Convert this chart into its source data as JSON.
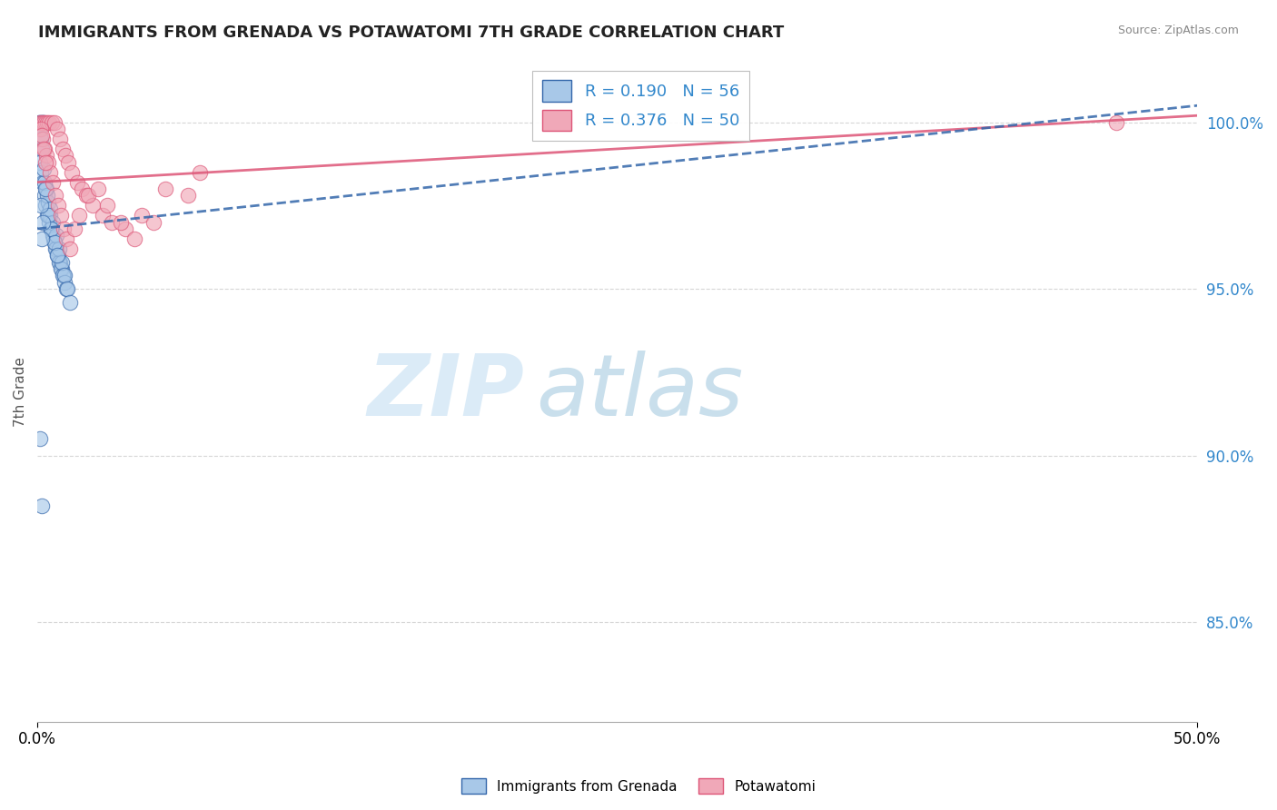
{
  "title": "IMMIGRANTS FROM GRENADA VS POTAWATOMI 7TH GRADE CORRELATION CHART",
  "source": "Source: ZipAtlas.com",
  "ylabel": "7th Grade",
  "legend_blue_r": "R = 0.190",
  "legend_blue_n": "N = 56",
  "legend_pink_r": "R = 0.376",
  "legend_pink_n": "N = 50",
  "blue_color": "#a8c8e8",
  "pink_color": "#f0a8b8",
  "blue_line_color": "#3366aa",
  "pink_line_color": "#dd5577",
  "legend_r_color": "#3388cc",
  "watermark_zip": "ZIP",
  "watermark_atlas": "atlas",
  "xlim": [
    0.0,
    50.0
  ],
  "ylim": [
    82.0,
    101.8
  ],
  "yticks": [
    85.0,
    90.0,
    95.0,
    100.0
  ],
  "ytick_labels": [
    "85.0%",
    "90.0%",
    "95.0%",
    "100.0%"
  ],
  "blue_trend_x": [
    0.0,
    50.0
  ],
  "blue_trend_y": [
    96.8,
    100.5
  ],
  "pink_trend_x": [
    0.0,
    50.0
  ],
  "pink_trend_y": [
    98.2,
    100.2
  ],
  "blue_scatter_x": [
    0.08,
    0.12,
    0.18,
    0.22,
    0.28,
    0.08,
    0.14,
    0.2,
    0.1,
    0.16,
    0.24,
    0.3,
    0.36,
    0.42,
    0.5,
    0.58,
    0.66,
    0.74,
    0.82,
    0.9,
    0.98,
    1.06,
    1.14,
    0.38,
    0.46,
    0.54,
    0.62,
    0.7,
    0.78,
    0.86,
    0.94,
    1.02,
    1.1,
    1.18,
    1.26,
    0.32,
    0.44,
    0.56,
    0.68,
    0.8,
    0.92,
    1.04,
    1.16,
    1.28,
    1.4,
    0.26,
    0.34,
    0.48,
    0.6,
    0.72,
    0.84,
    0.12,
    0.2,
    0.16,
    0.22,
    0.18
  ],
  "blue_scatter_y": [
    100.0,
    100.0,
    100.0,
    100.0,
    100.0,
    99.8,
    99.5,
    99.2,
    98.8,
    98.5,
    98.2,
    97.8,
    97.5,
    97.2,
    97.0,
    96.8,
    96.6,
    96.4,
    96.2,
    96.0,
    95.8,
    95.6,
    95.4,
    98.0,
    97.6,
    97.2,
    96.8,
    96.5,
    96.2,
    96.0,
    95.8,
    95.6,
    95.4,
    95.2,
    95.0,
    98.2,
    97.8,
    97.4,
    97.0,
    96.6,
    96.2,
    95.8,
    95.4,
    95.0,
    94.6,
    98.6,
    98.0,
    97.2,
    96.8,
    96.4,
    96.0,
    90.5,
    88.5,
    97.5,
    97.0,
    96.5
  ],
  "pink_scatter_x": [
    0.1,
    0.18,
    0.26,
    0.34,
    0.42,
    0.5,
    0.62,
    0.74,
    0.86,
    0.98,
    1.1,
    1.22,
    1.34,
    1.5,
    1.7,
    1.9,
    2.1,
    2.4,
    2.8,
    3.2,
    3.8,
    4.5,
    5.5,
    7.0,
    0.14,
    0.22,
    0.3,
    0.38,
    0.46,
    0.54,
    0.66,
    0.78,
    0.9,
    1.02,
    1.14,
    1.26,
    1.42,
    1.6,
    1.8,
    2.2,
    2.6,
    3.0,
    3.6,
    4.2,
    5.0,
    6.5,
    0.2,
    0.28,
    0.36,
    46.5
  ],
  "pink_scatter_y": [
    100.0,
    100.0,
    100.0,
    100.0,
    100.0,
    100.0,
    100.0,
    100.0,
    99.8,
    99.5,
    99.2,
    99.0,
    98.8,
    98.5,
    98.2,
    98.0,
    97.8,
    97.5,
    97.2,
    97.0,
    96.8,
    97.2,
    98.0,
    98.5,
    99.8,
    99.5,
    99.2,
    99.0,
    98.8,
    98.5,
    98.2,
    97.8,
    97.5,
    97.2,
    96.8,
    96.5,
    96.2,
    96.8,
    97.2,
    97.8,
    98.0,
    97.5,
    97.0,
    96.5,
    97.0,
    97.8,
    99.6,
    99.2,
    98.8,
    100.0
  ]
}
